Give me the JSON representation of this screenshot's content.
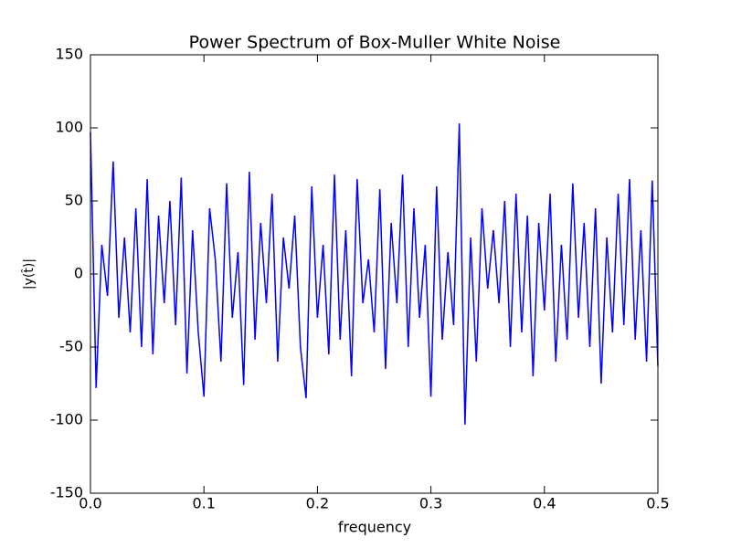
{
  "chart_data": {
    "type": "line",
    "title": "Power Spectrum of Box-Muller White Noise",
    "xlabel": "frequency",
    "ylabel": "|y(t̂)|",
    "xlim": [
      0,
      0.5
    ],
    "ylim": [
      -150,
      150
    ],
    "xticks": [
      {
        "value": 0,
        "label": "0.0"
      },
      0.1,
      0.2,
      0.3,
      0.4,
      0.5
    ],
    "yticks": [
      -150,
      -100,
      -50,
      0,
      50,
      100,
      150
    ],
    "grid": false,
    "x": [
      0,
      0.005,
      0.01,
      0.015,
      0.02,
      0.025,
      0.03,
      0.035,
      0.04,
      0.045,
      0.05,
      0.055,
      0.06,
      0.065,
      0.07,
      0.075,
      0.08,
      0.085,
      0.09,
      0.095,
      0.1,
      0.105,
      0.11,
      0.115,
      0.12,
      0.125,
      0.13,
      0.135,
      0.14,
      0.145,
      0.15,
      0.155,
      0.16,
      0.165,
      0.17,
      0.175,
      0.18,
      0.185,
      0.19,
      0.195,
      0.2,
      0.205,
      0.21,
      0.215,
      0.22,
      0.225,
      0.23,
      0.235,
      0.24,
      0.245,
      0.25,
      0.255,
      0.26,
      0.265,
      0.27,
      0.275,
      0.28,
      0.285,
      0.29,
      0.295,
      0.3,
      0.305,
      0.31,
      0.315,
      0.32,
      0.325,
      0.33,
      0.335,
      0.34,
      0.345,
      0.35,
      0.355,
      0.36,
      0.365,
      0.37,
      0.375,
      0.38,
      0.385,
      0.39,
      0.395,
      0.4,
      0.405,
      0.41,
      0.415,
      0.42,
      0.425,
      0.43,
      0.435,
      0.44,
      0.445,
      0.45,
      0.455,
      0.46,
      0.465,
      0.47,
      0.475,
      0.48,
      0.485,
      0.49,
      0.495,
      0.5
    ],
    "series": [
      {
        "color": "#0000ff",
        "values": [
          97,
          -78,
          20,
          -15,
          77,
          -30,
          25,
          -40,
          45,
          -50,
          65,
          -55,
          40,
          -20,
          50,
          -35,
          66,
          -68,
          30,
          -40,
          -84,
          45,
          10,
          -60,
          62,
          -30,
          15,
          -76,
          70,
          -45,
          35,
          -20,
          55,
          -60,
          25,
          -10,
          40,
          -50,
          -85,
          60,
          -30,
          20,
          -55,
          68,
          -45,
          30,
          -70,
          65,
          -20,
          10,
          -40,
          58,
          -65,
          35,
          -20,
          68,
          -50,
          45,
          -30,
          20,
          -84,
          60,
          -45,
          15,
          -35,
          103,
          -103,
          25,
          -60,
          45,
          -10,
          30,
          -20,
          50,
          -50,
          55,
          -40,
          40,
          -70,
          35,
          -25,
          55,
          -60,
          20,
          -45,
          62,
          -30,
          35,
          -50,
          45,
          -75,
          25,
          -40,
          55,
          -35,
          65,
          -45,
          30,
          -60,
          64,
          -63
        ]
      }
    ]
  }
}
